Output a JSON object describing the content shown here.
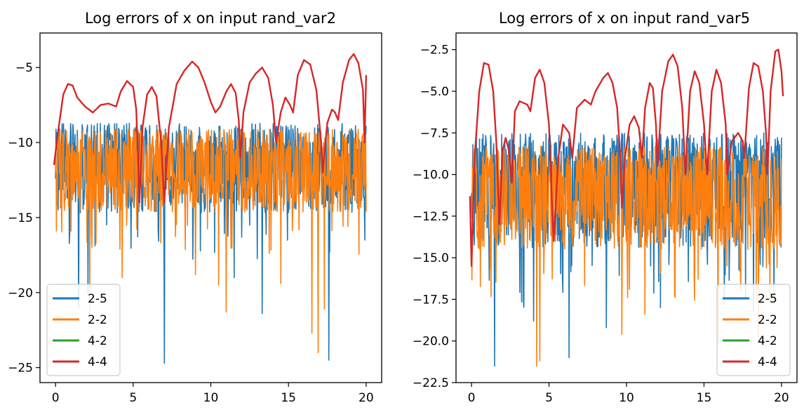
{
  "chart_data": [
    {
      "type": "line",
      "title": "Log errors of x on input rand_var2",
      "xlabel": "",
      "ylabel": "",
      "xlim": [
        -1,
        21
      ],
      "ylim": [
        -26,
        -2.7
      ],
      "xticks": [
        0,
        5,
        10,
        15,
        20
      ],
      "xtick_labels": [
        "0",
        "5",
        "10",
        "15",
        "20"
      ],
      "yticks": [
        -25,
        -20,
        -15,
        -10,
        -5
      ],
      "ytick_labels": [
        "−25",
        "−20",
        "−15",
        "−10",
        "−5"
      ],
      "grid": false,
      "legend_position": "lower-left",
      "noisy_series": [
        {
          "name": "2-5",
          "color": "#1f77b4",
          "center": -11.3,
          "amp": 2.6,
          "upper_cap": -8.0,
          "spikes": [
            [
              7.0,
              -24.7
            ],
            [
              17.6,
              -24.5
            ],
            [
              13.3,
              -21.4
            ],
            [
              1.5,
              -21.0
            ],
            [
              2.1,
              -20.1
            ],
            [
              11.5,
              -19.0
            ]
          ]
        },
        {
          "name": "2-2",
          "color": "#ff7f0e",
          "center": -11.5,
          "amp": 2.4,
          "upper_cap": -8.6,
          "spikes": [
            [
              16.9,
              -24.0
            ],
            [
              16.5,
              -22.7
            ],
            [
              17.3,
              -21.1
            ],
            [
              11.0,
              -21.3
            ],
            [
              10.5,
              -19.5
            ],
            [
              2.2,
              -22.0
            ],
            [
              4.3,
              -19.0
            ],
            [
              9.0,
              -18.8
            ],
            [
              14.5,
              -19.4
            ]
          ]
        }
      ],
      "arch_series": {
        "name": "4-4",
        "color": "#d62728",
        "segments": [
          [
            [
              -0.1,
              -11.5
            ],
            [
              0.2,
              -9.0
            ],
            [
              0.5,
              -6.8
            ],
            [
              0.8,
              -6.1
            ],
            [
              1.1,
              -6.2
            ],
            [
              1.4,
              -7.0
            ]
          ],
          [
            [
              1.4,
              -7.0
            ],
            [
              1.9,
              -7.6
            ],
            [
              2.4,
              -8.0
            ]
          ],
          [
            [
              2.4,
              -8.0
            ],
            [
              2.9,
              -7.5
            ],
            [
              3.4,
              -7.4
            ],
            [
              3.9,
              -7.6
            ]
          ],
          [
            [
              3.9,
              -7.6
            ],
            [
              4.2,
              -6.6
            ],
            [
              4.6,
              -5.9
            ],
            [
              5.0,
              -6.3
            ],
            [
              5.2,
              -7.8
            ],
            [
              5.3,
              -10.5
            ],
            [
              5.4,
              -14.0
            ]
          ],
          [
            [
              5.4,
              -14.0
            ],
            [
              5.6,
              -9.0
            ],
            [
              5.9,
              -6.8
            ],
            [
              6.2,
              -6.3
            ],
            [
              6.5,
              -6.9
            ],
            [
              6.8,
              -10.0
            ],
            [
              7.0,
              -14.0
            ]
          ],
          [
            [
              7.0,
              -14.0
            ],
            [
              7.3,
              -9.0
            ],
            [
              7.8,
              -6.1
            ],
            [
              8.3,
              -5.2
            ],
            [
              8.8,
              -4.6
            ],
            [
              9.2,
              -5.0
            ],
            [
              9.6,
              -6.0
            ],
            [
              10.0,
              -7.3
            ],
            [
              10.3,
              -8.0
            ],
            [
              10.6,
              -7.6
            ],
            [
              11.0,
              -6.6
            ],
            [
              11.3,
              -6.1
            ],
            [
              11.6,
              -6.7
            ],
            [
              11.8,
              -8.5
            ],
            [
              11.9,
              -11.0
            ]
          ],
          [
            [
              11.9,
              -11.0
            ],
            [
              12.1,
              -8.0
            ],
            [
              12.5,
              -6.0
            ],
            [
              12.9,
              -5.4
            ],
            [
              13.3,
              -5.0
            ],
            [
              13.7,
              -5.7
            ],
            [
              14.0,
              -7.5
            ],
            [
              14.2,
              -10.0
            ]
          ],
          [
            [
              14.2,
              -10.0
            ],
            [
              14.5,
              -8.0
            ],
            [
              14.8,
              -7.0
            ],
            [
              15.1,
              -7.5
            ],
            [
              15.3,
              -8.0
            ]
          ],
          [
            [
              15.3,
              -8.0
            ],
            [
              15.6,
              -5.5
            ],
            [
              16.0,
              -4.5
            ],
            [
              16.4,
              -4.8
            ],
            [
              16.8,
              -6.5
            ],
            [
              17.1,
              -10.0
            ],
            [
              17.2,
              -12.0
            ]
          ],
          [
            [
              17.2,
              -12.0
            ],
            [
              17.5,
              -8.7
            ],
            [
              17.8,
              -7.8
            ],
            [
              18.0,
              -8.0
            ],
            [
              18.2,
              -8.5
            ]
          ],
          [
            [
              18.2,
              -8.5
            ],
            [
              18.5,
              -6.0
            ],
            [
              18.9,
              -4.5
            ],
            [
              19.2,
              -4.1
            ],
            [
              19.5,
              -4.7
            ],
            [
              19.8,
              -6.5
            ],
            [
              19.9,
              -10.0
            ],
            [
              20.0,
              -5.5
            ]
          ]
        ]
      },
      "extra_series": [
        {
          "name": "4-2",
          "color": "#2ca02c"
        }
      ]
    },
    {
      "type": "line",
      "title": "Log errors of x on input rand_var5",
      "xlabel": "",
      "ylabel": "",
      "xlim": [
        -1,
        21
      ],
      "ylim": [
        -22.5,
        -1.5
      ],
      "xticks": [
        0,
        5,
        10,
        15,
        20
      ],
      "xtick_labels": [
        "0",
        "5",
        "10",
        "15",
        "20"
      ],
      "yticks": [
        -22.5,
        -20.0,
        -17.5,
        -15.0,
        -12.5,
        -10.0,
        -7.5,
        -5.0,
        -2.5
      ],
      "ytick_labels": [
        "−22.5",
        "−20.0",
        "−17.5",
        "−15.0",
        "−12.5",
        "−10.0",
        "−7.5",
        "−5.0",
        "−2.5"
      ],
      "grid": false,
      "legend_position": "lower-right",
      "noisy_series": [
        {
          "name": "2-5",
          "color": "#1f77b4",
          "center": -10.5,
          "amp": 3.0,
          "upper_cap": -6.2,
          "spikes": [
            [
              1.5,
              -21.5
            ],
            [
              6.3,
              -21.0
            ],
            [
              8.7,
              -19.2
            ],
            [
              4.0,
              -18.8
            ],
            [
              12.2,
              -18.0
            ],
            [
              16.3,
              -17.8
            ],
            [
              18.2,
              -18.2
            ]
          ]
        },
        {
          "name": "2-2",
          "color": "#ff7f0e",
          "center": -11.0,
          "amp": 2.7,
          "upper_cap": -7.5,
          "spikes": [
            [
              4.2,
              -21.5
            ],
            [
              4.4,
              -21.2
            ],
            [
              15.9,
              -20.2
            ],
            [
              18.5,
              -19.8
            ],
            [
              9.7,
              -19.6
            ],
            [
              11.2,
              -18.4
            ],
            [
              13.1,
              -17.3
            ]
          ]
        }
      ],
      "arch_series": {
        "name": "4-4",
        "color": "#d62728",
        "segments": [
          [
            [
              -0.1,
              -11.3
            ],
            [
              0.0,
              -15.5
            ],
            [
              0.2,
              -9.0
            ],
            [
              0.5,
              -5.0
            ],
            [
              0.8,
              -3.3
            ],
            [
              1.1,
              -3.4
            ],
            [
              1.4,
              -5.0
            ],
            [
              1.6,
              -8.0
            ],
            [
              1.8,
              -13.0
            ]
          ],
          [
            [
              1.8,
              -13.0
            ],
            [
              2.0,
              -8.6
            ],
            [
              2.2,
              -7.8
            ],
            [
              2.4,
              -8.5
            ],
            [
              2.6,
              -10.5
            ]
          ],
          [
            [
              2.6,
              -10.5
            ],
            [
              2.8,
              -6.2
            ],
            [
              3.1,
              -5.6
            ],
            [
              3.6,
              -5.8
            ],
            [
              3.8,
              -6.2
            ]
          ],
          [
            [
              3.8,
              -6.2
            ],
            [
              4.1,
              -4.2
            ],
            [
              4.4,
              -3.7
            ],
            [
              4.7,
              -4.5
            ],
            [
              5.0,
              -7.0
            ],
            [
              5.2,
              -12.0
            ],
            [
              5.3,
              -14.0
            ]
          ],
          [
            [
              5.3,
              -14.0
            ],
            [
              5.6,
              -9.0
            ],
            [
              5.9,
              -7.0
            ],
            [
              6.3,
              -7.5
            ],
            [
              6.5,
              -9.0
            ]
          ],
          [
            [
              6.5,
              -9.0
            ],
            [
              6.8,
              -6.0
            ],
            [
              7.3,
              -5.5
            ],
            [
              7.7,
              -5.8
            ],
            [
              8.0,
              -5.0
            ],
            [
              8.5,
              -4.2
            ],
            [
              8.8,
              -3.9
            ],
            [
              9.1,
              -4.5
            ],
            [
              9.4,
              -6.0
            ],
            [
              9.6,
              -9.0
            ],
            [
              9.7,
              -12.0
            ]
          ],
          [
            [
              9.7,
              -12.0
            ],
            [
              9.9,
              -9.0
            ],
            [
              10.2,
              -7.0
            ],
            [
              10.5,
              -6.5
            ],
            [
              10.8,
              -7.2
            ],
            [
              11.0,
              -9.0
            ]
          ],
          [
            [
              11.0,
              -9.0
            ],
            [
              11.2,
              -6.0
            ],
            [
              11.5,
              -4.5
            ],
            [
              11.7,
              -4.8
            ],
            [
              11.9,
              -7.0
            ],
            [
              12.0,
              -9.5
            ]
          ],
          [
            [
              12.0,
              -9.5
            ],
            [
              12.3,
              -5.0
            ],
            [
              12.7,
              -3.2
            ],
            [
              13.0,
              -2.8
            ],
            [
              13.3,
              -3.5
            ],
            [
              13.6,
              -6.0
            ],
            [
              13.8,
              -10.0
            ]
          ],
          [
            [
              13.8,
              -10.0
            ],
            [
              14.1,
              -5.0
            ],
            [
              14.4,
              -3.8
            ],
            [
              14.7,
              -4.5
            ],
            [
              15.0,
              -7.0
            ],
            [
              15.2,
              -10.0
            ]
          ],
          [
            [
              15.2,
              -10.0
            ],
            [
              15.5,
              -5.0
            ],
            [
              15.8,
              -3.7
            ],
            [
              16.1,
              -4.5
            ],
            [
              16.4,
              -7.0
            ],
            [
              16.5,
              -10.0
            ]
          ],
          [
            [
              16.5,
              -10.0
            ],
            [
              16.8,
              -8.0
            ],
            [
              17.2,
              -7.5
            ],
            [
              17.5,
              -8.0
            ],
            [
              17.6,
              -9.0
            ]
          ],
          [
            [
              17.6,
              -9.0
            ],
            [
              17.9,
              -4.8
            ],
            [
              18.2,
              -3.3
            ],
            [
              18.5,
              -3.5
            ],
            [
              18.8,
              -5.0
            ],
            [
              19.0,
              -7.5
            ],
            [
              19.1,
              -10.0
            ]
          ],
          [
            [
              19.1,
              -10.0
            ],
            [
              19.3,
              -5.0
            ],
            [
              19.6,
              -2.6
            ],
            [
              19.8,
              -2.5
            ],
            [
              20.0,
              -3.8
            ],
            [
              20.1,
              -5.3
            ]
          ]
        ]
      },
      "extra_series": [
        {
          "name": "4-2",
          "color": "#2ca02c"
        }
      ]
    }
  ]
}
